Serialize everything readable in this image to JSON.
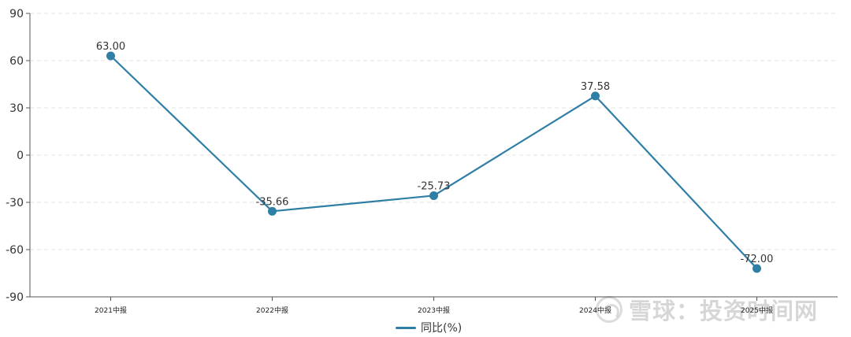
{
  "chart_data": {
    "type": "line",
    "categories": [
      "2021中报",
      "2022中报",
      "2023中报",
      "2024中报",
      "2025中报"
    ],
    "series": [
      {
        "name": "同比(%)",
        "values": [
          63.0,
          -35.66,
          -25.73,
          37.58,
          -72.0
        ],
        "labels": [
          "63.00",
          "-35.66",
          "-25.73",
          "37.58",
          "-72.00"
        ]
      }
    ],
    "ylim": [
      -90,
      90
    ],
    "yticks": [
      90,
      60,
      30,
      0,
      -30,
      -60,
      -90
    ],
    "grid": true,
    "legend": "bottom-center"
  },
  "colors": {
    "series": "#2e7ea6",
    "axis": "#555555",
    "grid": "#e3e3e3",
    "label": "#333333"
  },
  "watermark": {
    "text": "雪球：投资时间网"
  }
}
